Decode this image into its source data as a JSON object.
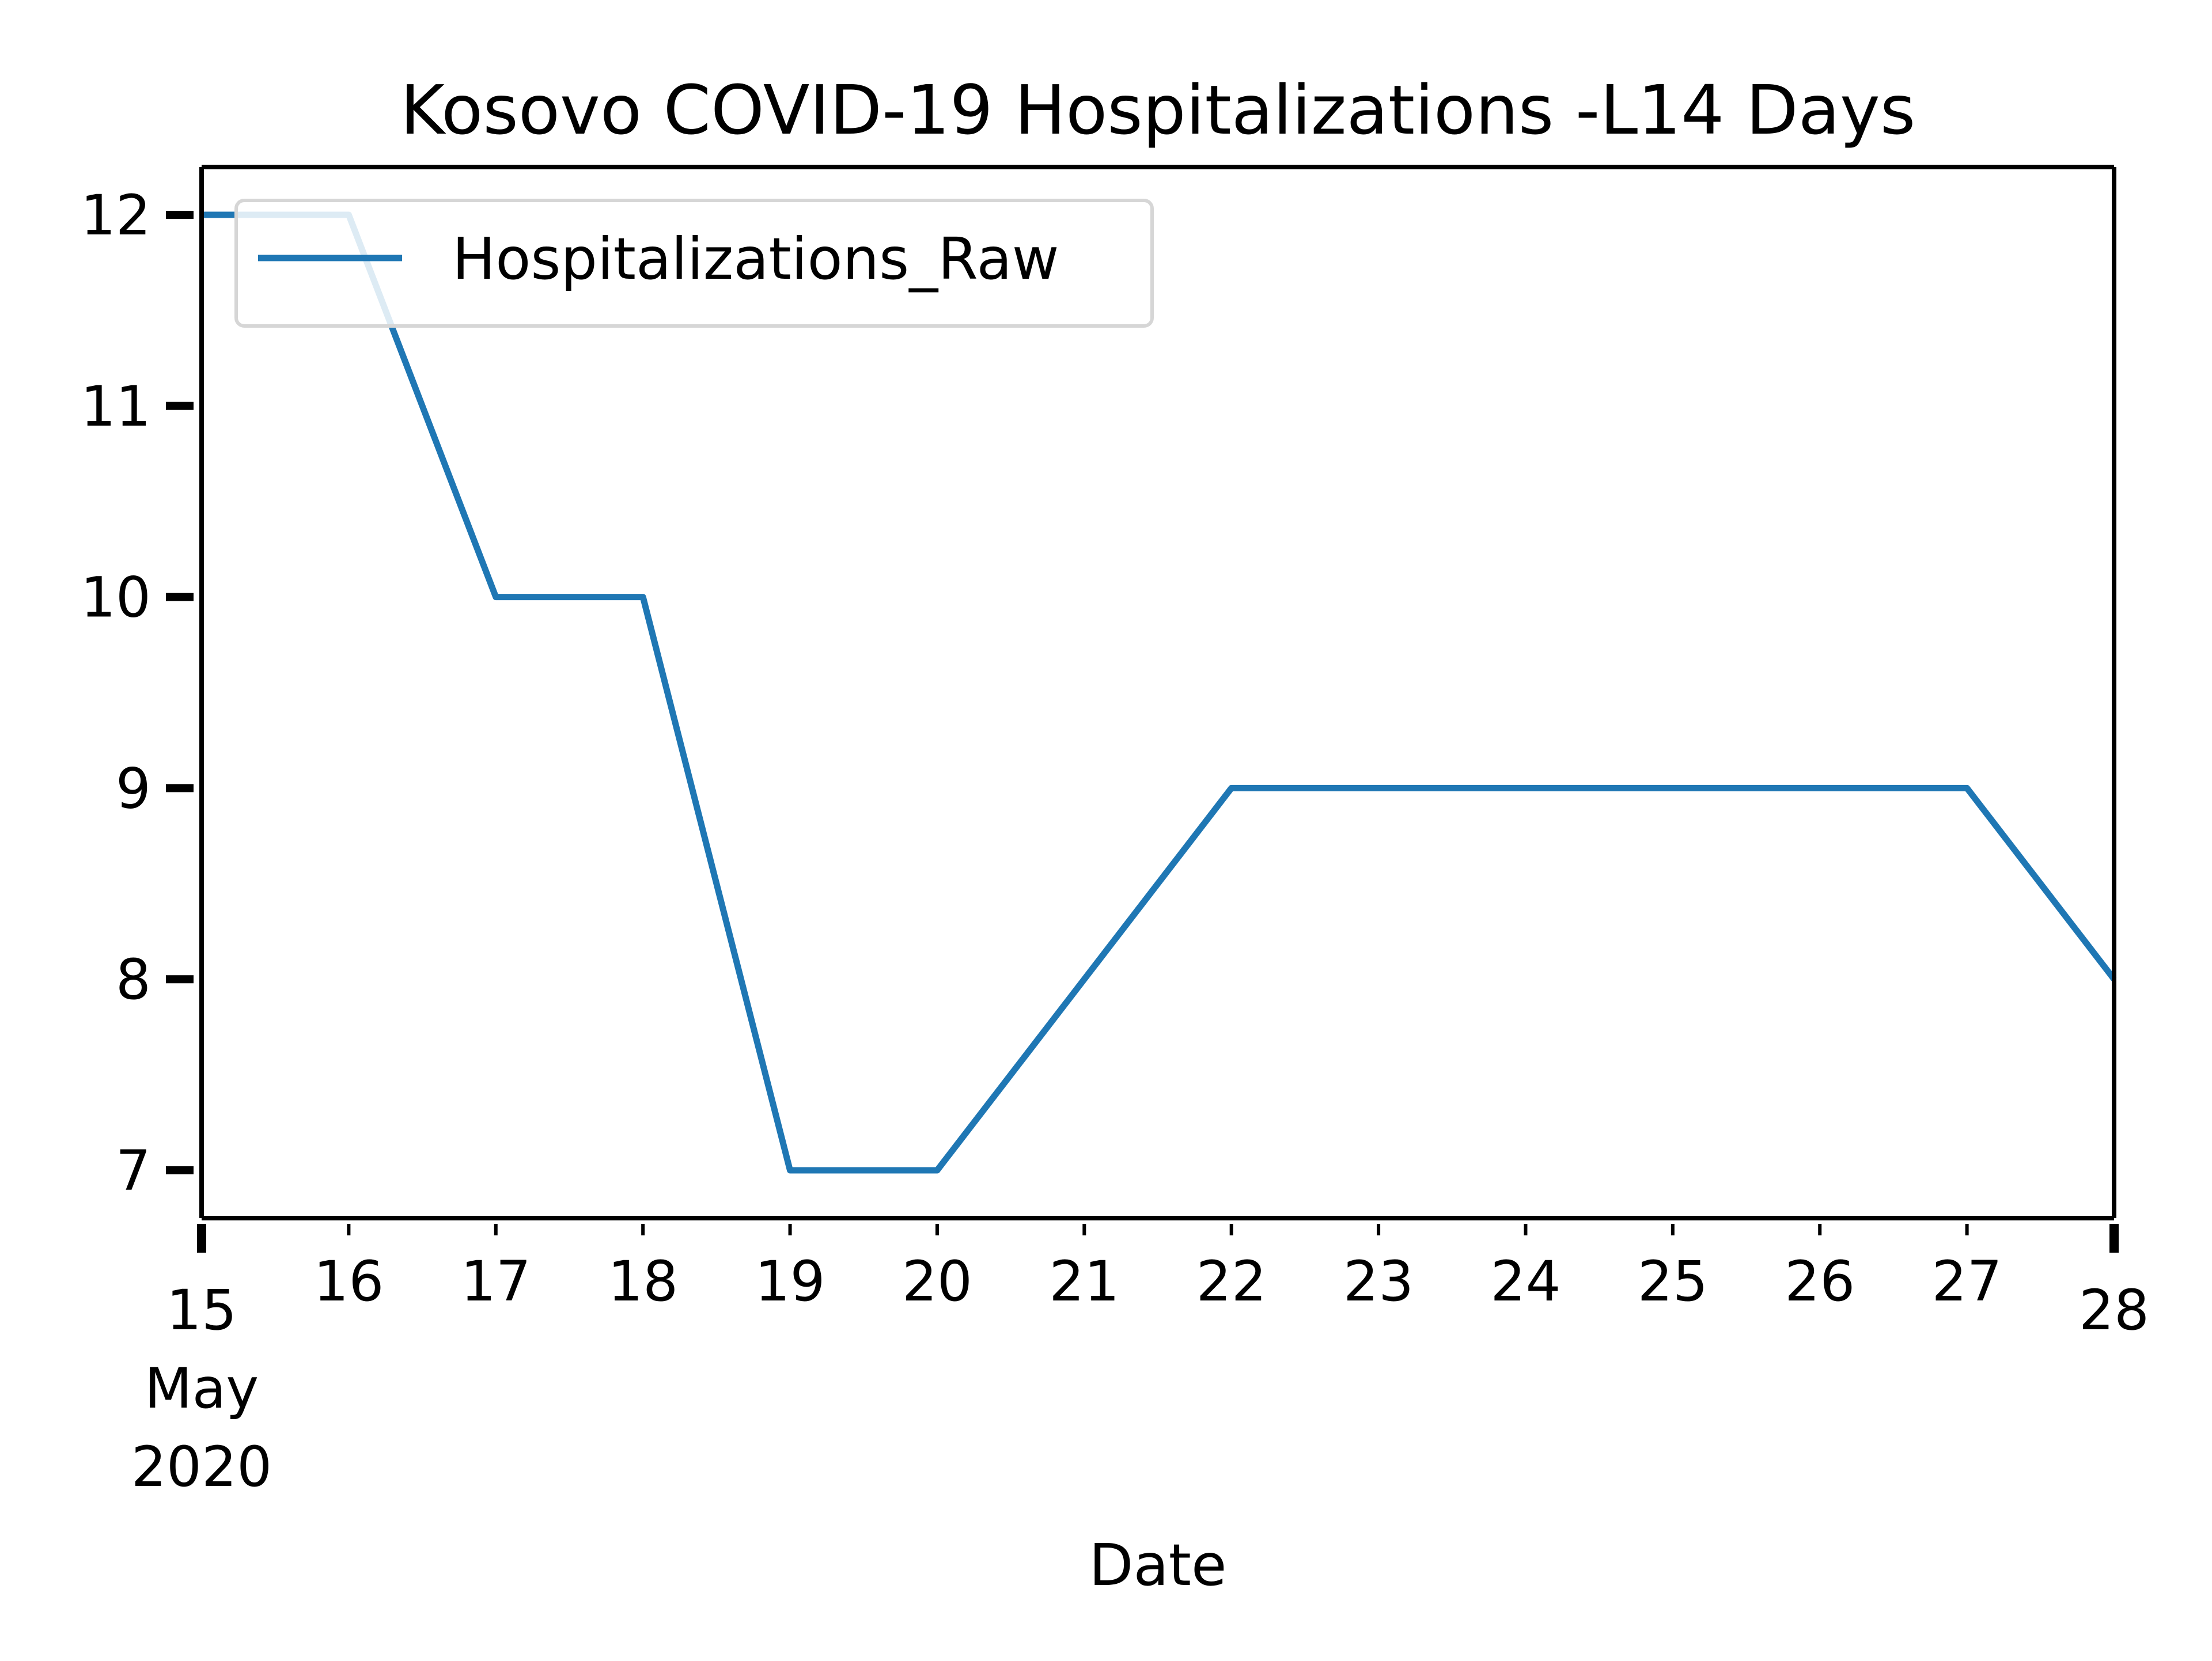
{
  "chart_data": {
    "type": "line",
    "title": "Kosovo COVID-19 Hospitalizations -L14 Days",
    "xlabel": "Date",
    "ylabel": "",
    "x": [
      "2020-05-15",
      "2020-05-16",
      "2020-05-17",
      "2020-05-18",
      "2020-05-19",
      "2020-05-20",
      "2020-05-21",
      "2020-05-22",
      "2020-05-23",
      "2020-05-24",
      "2020-05-25",
      "2020-05-26",
      "2020-05-27",
      "2020-05-28"
    ],
    "series": [
      {
        "name": "Hospitalizations_Raw",
        "color": "#1f77b4",
        "values": [
          12,
          12,
          10,
          10,
          7,
          7,
          8,
          9,
          9,
          9,
          9,
          9,
          9,
          8
        ]
      }
    ],
    "xlim": [
      "2020-05-15",
      "2020-05-28"
    ],
    "ylim": [
      6.75,
      12.25
    ],
    "y_ticks": [
      7,
      8,
      9,
      10,
      11,
      12
    ],
    "x_ticks": [
      {
        "date": "2020-05-15",
        "lines": [
          "15",
          "May",
          "2020"
        ]
      },
      {
        "date": "2020-05-16",
        "lines": [
          "16"
        ]
      },
      {
        "date": "2020-05-17",
        "lines": [
          "17"
        ]
      },
      {
        "date": "2020-05-18",
        "lines": [
          "18"
        ]
      },
      {
        "date": "2020-05-19",
        "lines": [
          "19"
        ]
      },
      {
        "date": "2020-05-20",
        "lines": [
          "20"
        ]
      },
      {
        "date": "2020-05-21",
        "lines": [
          "21"
        ]
      },
      {
        "date": "2020-05-22",
        "lines": [
          "22"
        ]
      },
      {
        "date": "2020-05-23",
        "lines": [
          "23"
        ]
      },
      {
        "date": "2020-05-24",
        "lines": [
          "24"
        ]
      },
      {
        "date": "2020-05-25",
        "lines": [
          "25"
        ]
      },
      {
        "date": "2020-05-26",
        "lines": [
          "26"
        ]
      },
      {
        "date": "2020-05-27",
        "lines": [
          "27"
        ]
      },
      {
        "date": "2020-05-28",
        "lines": [
          "28"
        ]
      }
    ],
    "legend": {
      "placement": "upper-left"
    },
    "grid": false
  }
}
